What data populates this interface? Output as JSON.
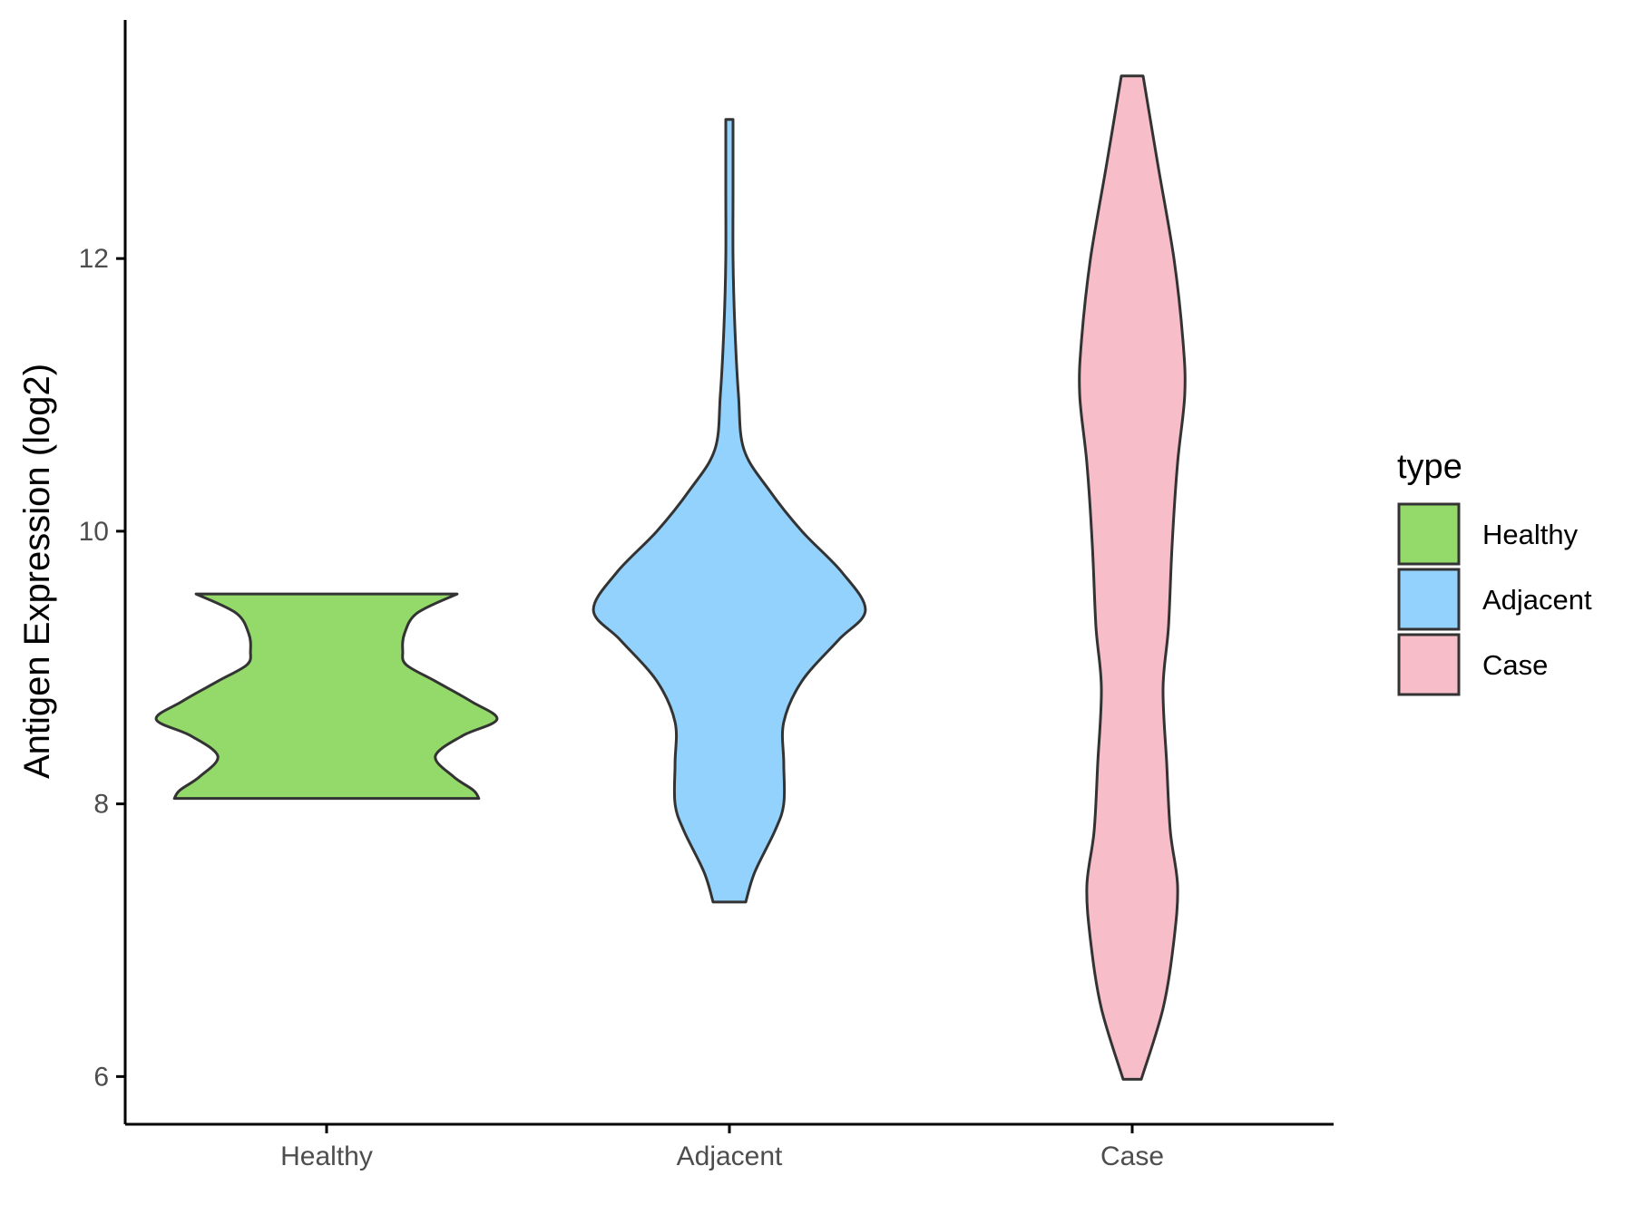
{
  "chart_data": {
    "type": "violin",
    "ylabel": "Antigen Expression (log2)",
    "xlabel": "",
    "categories": [
      "Healthy",
      "Adjacent",
      "Case"
    ],
    "y_ticks": [
      6,
      8,
      10,
      12
    ],
    "ylim": [
      5.65,
      13.75
    ],
    "grid": false,
    "legend": {
      "title": "type",
      "placement": "right",
      "entries": [
        "Healthy",
        "Adjacent",
        "Case"
      ]
    },
    "series": [
      {
        "name": "Healthy",
        "color": "#93DA6A",
        "min": 8.04,
        "max": 9.54,
        "density": [
          [
            8.04,
            0.84
          ],
          [
            8.1,
            0.81
          ],
          [
            8.2,
            0.7
          ],
          [
            8.35,
            0.6
          ],
          [
            8.5,
            0.75
          ],
          [
            8.62,
            0.94
          ],
          [
            8.75,
            0.8
          ],
          [
            8.9,
            0.6
          ],
          [
            9.02,
            0.44
          ],
          [
            9.12,
            0.42
          ],
          [
            9.25,
            0.43
          ],
          [
            9.4,
            0.5
          ],
          [
            9.54,
            0.72
          ]
        ]
      },
      {
        "name": "Adjacent",
        "color": "#93D2FC",
        "min": 7.28,
        "max": 13.02,
        "density": [
          [
            7.28,
            0.09
          ],
          [
            7.5,
            0.14
          ],
          [
            7.8,
            0.25
          ],
          [
            8.0,
            0.3
          ],
          [
            8.3,
            0.3
          ],
          [
            8.6,
            0.3
          ],
          [
            8.9,
            0.4
          ],
          [
            9.2,
            0.6
          ],
          [
            9.42,
            0.75
          ],
          [
            9.7,
            0.62
          ],
          [
            10.0,
            0.4
          ],
          [
            10.3,
            0.22
          ],
          [
            10.6,
            0.08
          ],
          [
            11.0,
            0.05
          ],
          [
            11.5,
            0.03
          ],
          [
            12.0,
            0.02
          ],
          [
            12.5,
            0.02
          ],
          [
            13.02,
            0.02
          ]
        ]
      },
      {
        "name": "Case",
        "color": "#F7BECA",
        "min": 5.98,
        "max": 13.34,
        "density": [
          [
            5.98,
            0.05
          ],
          [
            6.5,
            0.17
          ],
          [
            7.0,
            0.23
          ],
          [
            7.4,
            0.25
          ],
          [
            7.8,
            0.21
          ],
          [
            8.3,
            0.19
          ],
          [
            8.85,
            0.17
          ],
          [
            9.3,
            0.2
          ],
          [
            9.9,
            0.22
          ],
          [
            10.5,
            0.25
          ],
          [
            11.0,
            0.29
          ],
          [
            11.4,
            0.28
          ],
          [
            12.0,
            0.23
          ],
          [
            12.7,
            0.14
          ],
          [
            13.34,
            0.06
          ]
        ]
      }
    ]
  }
}
